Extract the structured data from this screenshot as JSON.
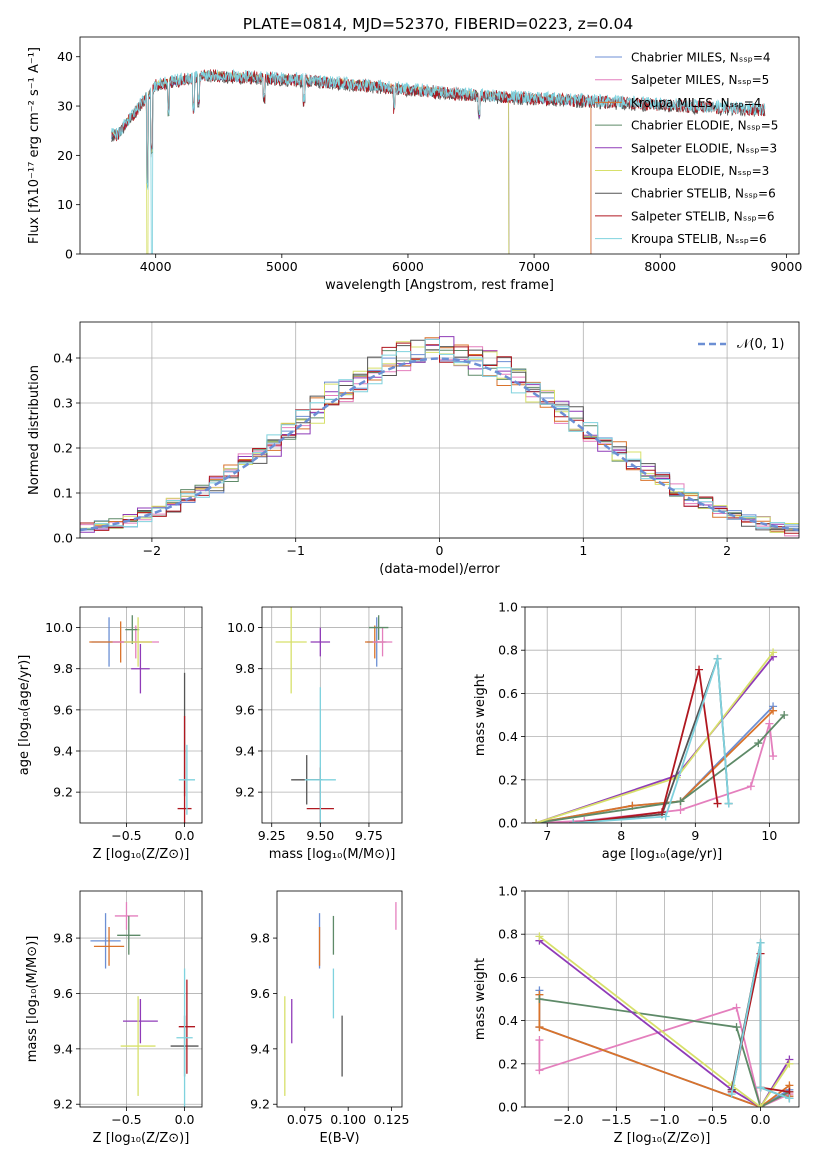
{
  "chart_data": [
    {
      "type": "line",
      "title": "PLATE=0814, MJD=52370, FIBERID=0223, z=0.04",
      "xlabel": "wavelength [Angstrom, rest frame]",
      "ylabel": "Flux [fλ10⁻¹⁷ erg cm⁻² s⁻¹ A⁻¹]",
      "xlim": [
        3400,
        9100
      ],
      "ylim": [
        0,
        44
      ],
      "xticks": [
        4000,
        5000,
        6000,
        7000,
        8000,
        9000
      ],
      "yticks": [
        0,
        10,
        20,
        30,
        40
      ],
      "grid": false,
      "legend_position": "top-right",
      "series": [
        {
          "name": "Chabrier MILES, N_SSP=4",
          "color": "#6c8fd4",
          "x_range": [
            3650,
            7450
          ]
        },
        {
          "name": "Salpeter MILES, N_SSP=5",
          "color": "#e47fbd",
          "x_range": [
            3650,
            7450
          ]
        },
        {
          "name": "Kroupa MILES, N_SSP=4",
          "color": "#d9732b",
          "x_range": [
            3650,
            7450
          ]
        },
        {
          "name": "Chabrier ELODIE, N_SSP=5",
          "color": "#5e8a68",
          "x_range": [
            3650,
            6800
          ]
        },
        {
          "name": "Salpeter ELODIE, N_SSP=3",
          "color": "#8f3bb8",
          "x_range": [
            3650,
            6800
          ]
        },
        {
          "name": "Kroupa ELODIE, N_SSP=3",
          "color": "#d7e06a",
          "x_range": [
            3650,
            6800
          ]
        },
        {
          "name": "Chabrier STELIB, N_SSP=6",
          "color": "#555555",
          "x_range": [
            3650,
            8830
          ]
        },
        {
          "name": "Salpeter STELIB, N_SSP=6",
          "color": "#b01820",
          "x_range": [
            3650,
            8830
          ]
        },
        {
          "name": "Kroupa STELIB, N_SSP=6",
          "color": "#7fd2de",
          "x_range": [
            3650,
            8830
          ]
        }
      ]
    },
    {
      "type": "bar",
      "xlabel": "(data-model)/error",
      "ylabel": "Normed distribution",
      "xlim": [
        -2.5,
        2.5
      ],
      "ylim": [
        0,
        0.48
      ],
      "xticks": [
        -2,
        -1,
        0,
        1,
        2
      ],
      "yticks": [
        0.0,
        0.1,
        0.2,
        0.3,
        0.4
      ],
      "grid": true,
      "legend": "𝒩(0, 1)",
      "legend_position": "top-right",
      "description_curve": "gaussian N(0,1)",
      "bin_width": 0.1
    },
    {
      "type": "scatter",
      "xlabel": "Z [log₁₀(Z/Z⊙)]",
      "ylabel": "age  [log₁₀(age/yr)]",
      "xlim": [
        -0.9,
        0.15
      ],
      "ylim": [
        9.05,
        10.1
      ],
      "xticks": [
        -0.5,
        0.0
      ],
      "yticks": [
        9.2,
        9.4,
        9.6,
        9.8,
        10.0
      ],
      "grid": true,
      "points": [
        {
          "x": -0.65,
          "y": 9.93,
          "xerr": 0.15,
          "yerr": 0.12,
          "color": "#6c8fd4"
        },
        {
          "x": -0.55,
          "y": 9.93,
          "xerr": 0.27,
          "yerr": 0.1,
          "color": "#d9732b"
        },
        {
          "x": -0.42,
          "y": 9.93,
          "xerr": 0.2,
          "yerr": 0.08,
          "color": "#e47fbd"
        },
        {
          "x": -0.45,
          "y": 9.99,
          "xerr": 0.06,
          "yerr": 0.07,
          "color": "#5e8a68"
        },
        {
          "x": -0.38,
          "y": 9.8,
          "xerr": 0.08,
          "yerr": 0.12,
          "color": "#8f3bb8"
        },
        {
          "x": -0.4,
          "y": 9.93,
          "xerr": 0.12,
          "yerr": 0.12,
          "color": "#d7e06a"
        },
        {
          "x": 0.0,
          "y": 9.48,
          "xerr": 0.0,
          "yerr": 0.3,
          "color": "#555555"
        },
        {
          "x": 0.0,
          "y": 9.12,
          "xerr": 0.06,
          "yerr": 0.45,
          "color": "#b01820"
        },
        {
          "x": 0.02,
          "y": 9.26,
          "xerr": 0.07,
          "yerr": 0.17,
          "color": "#7fd2de"
        }
      ]
    },
    {
      "type": "scatter",
      "xlabel": "mass [log₁₀(M/M⊙)]",
      "xlim": [
        9.2,
        9.92
      ],
      "ylim": [
        9.05,
        10.1
      ],
      "xticks": [
        9.25,
        9.5,
        9.75
      ],
      "yticks": [
        9.2,
        9.4,
        9.6,
        9.8,
        10.0
      ],
      "grid": true,
      "points": [
        {
          "x": 9.79,
          "y": 9.93,
          "xerr": 0.05,
          "yerr": 0.12,
          "color": "#6c8fd4"
        },
        {
          "x": 9.78,
          "y": 9.93,
          "xerr": 0.05,
          "yerr": 0.08,
          "color": "#d9732b"
        },
        {
          "x": 9.82,
          "y": 9.93,
          "xerr": 0.05,
          "yerr": 0.07,
          "color": "#e47fbd"
        },
        {
          "x": 9.8,
          "y": 10.0,
          "xerr": 0.05,
          "yerr": 0.06,
          "color": "#5e8a68"
        },
        {
          "x": 9.5,
          "y": 9.93,
          "xerr": 0.05,
          "yerr": 0.07,
          "color": "#8f3bb8"
        },
        {
          "x": 9.35,
          "y": 9.93,
          "xerr": 0.08,
          "yerr": 0.25,
          "color": "#d7e06a"
        },
        {
          "x": 9.43,
          "y": 9.26,
          "xerr": 0.08,
          "yerr": 0.12,
          "color": "#555555"
        },
        {
          "x": 9.5,
          "y": 9.12,
          "xerr": 0.07,
          "yerr": 0.2,
          "color": "#b01820"
        },
        {
          "x": 9.5,
          "y": 9.26,
          "xerr": 0.08,
          "yerr": 0.45,
          "color": "#7fd2de"
        }
      ]
    },
    {
      "type": "line",
      "xlabel": "age  [log₁₀(age/yr)]",
      "ylabel": "mass weight",
      "xlim": [
        6.7,
        10.4
      ],
      "ylim": [
        0,
        1.0
      ],
      "xticks": [
        7,
        8,
        9,
        10
      ],
      "yticks": [
        0.0,
        0.2,
        0.4,
        0.6,
        0.8,
        1.0
      ],
      "grid": true,
      "series": [
        {
          "name": "Chabrier MILES",
          "color": "#6c8fd4",
          "x": [
            6.85,
            8.15,
            8.8,
            10.05
          ],
          "y": [
            0.0,
            0.08,
            0.1,
            0.54
          ]
        },
        {
          "name": "Salpeter MILES",
          "color": "#e47fbd",
          "x": [
            6.85,
            7.5,
            8.8,
            9.75,
            10.0,
            10.05
          ],
          "y": [
            0.0,
            0.01,
            0.06,
            0.17,
            0.46,
            0.31
          ]
        },
        {
          "name": "Kroupa MILES",
          "color": "#d9732b",
          "x": [
            6.85,
            8.15,
            8.8,
            10.05
          ],
          "y": [
            0.0,
            0.08,
            0.1,
            0.52
          ]
        },
        {
          "name": "Chabrier ELODIE",
          "color": "#5e8a68",
          "x": [
            6.85,
            8.8,
            9.85,
            10.2
          ],
          "y": [
            0.0,
            0.1,
            0.37,
            0.5
          ]
        },
        {
          "name": "Salpeter ELODIE",
          "color": "#8f3bb8",
          "x": [
            6.85,
            8.75,
            10.05
          ],
          "y": [
            0.0,
            0.22,
            0.77
          ]
        },
        {
          "name": "Kroupa ELODIE",
          "color": "#d7e06a",
          "x": [
            6.85,
            8.75,
            10.05
          ],
          "y": [
            0.0,
            0.21,
            0.79
          ]
        },
        {
          "name": "Chabrier STELIB",
          "color": "#555555",
          "x": [
            7.35,
            8.55,
            9.3,
            9.45
          ],
          "y": [
            0.0,
            0.04,
            0.76,
            0.09
          ]
        },
        {
          "name": "Salpeter STELIB",
          "color": "#b01820",
          "x": [
            7.35,
            8.55,
            9.05,
            9.3
          ],
          "y": [
            0.0,
            0.05,
            0.71,
            0.09
          ]
        },
        {
          "name": "Kroupa STELIB",
          "color": "#7fd2de",
          "x": [
            7.35,
            8.6,
            9.3,
            9.45
          ],
          "y": [
            0.0,
            0.03,
            0.76,
            0.09
          ]
        }
      ]
    },
    {
      "type": "scatter",
      "xlabel": "Z [log₁₀(Z/Z⊙)]",
      "ylabel": "mass [log₁₀(M/M⊙)]",
      "xlim": [
        -0.9,
        0.15
      ],
      "ylim": [
        9.19,
        9.97
      ],
      "xticks": [
        -0.5,
        0.0
      ],
      "yticks": [
        9.2,
        9.4,
        9.6,
        9.8
      ],
      "grid": true,
      "points": [
        {
          "x": -0.68,
          "y": 9.79,
          "xerr": 0.13,
          "yerr": 0.1,
          "color": "#6c8fd4"
        },
        {
          "x": -0.65,
          "y": 9.77,
          "xerr": 0.13,
          "yerr": 0.07,
          "color": "#d9732b"
        },
        {
          "x": -0.5,
          "y": 9.88,
          "xerr": 0.1,
          "yerr": 0.05,
          "color": "#e47fbd"
        },
        {
          "x": -0.48,
          "y": 9.81,
          "xerr": 0.1,
          "yerr": 0.07,
          "color": "#5e8a68"
        },
        {
          "x": -0.38,
          "y": 9.5,
          "xerr": 0.15,
          "yerr": 0.08,
          "color": "#8f3bb8"
        },
        {
          "x": -0.4,
          "y": 9.41,
          "xerr": 0.15,
          "yerr": 0.18,
          "color": "#d7e06a"
        },
        {
          "x": 0.0,
          "y": 9.41,
          "xerr": 0.12,
          "yerr": 0.11,
          "color": "#555555"
        },
        {
          "x": 0.02,
          "y": 9.48,
          "xerr": 0.07,
          "yerr": 0.17,
          "color": "#b01820"
        },
        {
          "x": 0.0,
          "y": 9.44,
          "xerr": 0.07,
          "yerr": 0.25,
          "color": "#7fd2de"
        }
      ]
    },
    {
      "type": "scatter",
      "xlabel": "E(B-V)",
      "xlim": [
        0.059,
        0.131
      ],
      "ylim": [
        9.19,
        9.97
      ],
      "xticks": [
        0.075,
        0.1,
        0.125
      ],
      "yticks": [
        9.2,
        9.4,
        9.6,
        9.8
      ],
      "grid": false,
      "points": [
        {
          "x": 0.0835,
          "y": 9.79,
          "yerr": 0.1,
          "color": "#6c8fd4"
        },
        {
          "x": 0.0835,
          "y": 9.77,
          "yerr": 0.07,
          "color": "#d9732b"
        },
        {
          "x": 0.1275,
          "y": 9.88,
          "yerr": 0.05,
          "color": "#e47fbd"
        },
        {
          "x": 0.0915,
          "y": 9.81,
          "yerr": 0.07,
          "color": "#5e8a68"
        },
        {
          "x": 0.0675,
          "y": 9.5,
          "yerr": 0.08,
          "color": "#8f3bb8"
        },
        {
          "x": 0.0635,
          "y": 9.41,
          "yerr": 0.18,
          "color": "#d7e06a"
        },
        {
          "x": 0.0965,
          "y": 9.41,
          "yerr": 0.11,
          "color": "#555555"
        },
        {
          "x": 0.0915,
          "y": 9.6,
          "yerr": 0.09,
          "color": "#7fd2de"
        }
      ]
    },
    {
      "type": "line",
      "xlabel": "Z [log₁₀(Z/Z⊙)]",
      "ylabel": "mass weight",
      "xlim": [
        -2.45,
        0.4
      ],
      "ylim": [
        0,
        1.0
      ],
      "xticks": [
        -2.0,
        -1.5,
        -1.0,
        -0.5,
        0.0
      ],
      "yticks": [
        0.0,
        0.2,
        0.4,
        0.6,
        0.8,
        1.0
      ],
      "grid": true,
      "series": [
        {
          "name": "Chabrier MILES",
          "color": "#6c8fd4",
          "x": [
            -2.3,
            -2.3,
            0.0,
            0.3,
            0.3
          ],
          "y": [
            0.54,
            0.37,
            0.0,
            0.08,
            0.05
          ]
        },
        {
          "name": "Salpeter MILES",
          "color": "#e47fbd",
          "x": [
            -2.3,
            -2.3,
            -0.25,
            0.0,
            0.3
          ],
          "y": [
            0.31,
            0.17,
            0.46,
            0.0,
            0.06
          ]
        },
        {
          "name": "Kroupa MILES",
          "color": "#d9732b",
          "x": [
            -2.3,
            -2.3,
            0.0,
            0.3,
            0.3
          ],
          "y": [
            0.52,
            0.37,
            0.0,
            0.1,
            0.05
          ]
        },
        {
          "name": "Chabrier ELODIE",
          "color": "#5e8a68",
          "x": [
            -2.3,
            -0.25,
            0.0,
            0.3
          ],
          "y": [
            0.5,
            0.37,
            0.0,
            0.07
          ]
        },
        {
          "name": "Salpeter ELODIE",
          "color": "#8f3bb8",
          "x": [
            -2.3,
            -0.3,
            0.0,
            0.3
          ],
          "y": [
            0.77,
            0.08,
            0.0,
            0.22
          ]
        },
        {
          "name": "Kroupa ELODIE",
          "color": "#d7e06a",
          "x": [
            -2.3,
            -0.3,
            0.0,
            0.3
          ],
          "y": [
            0.79,
            0.1,
            0.0,
            0.2
          ]
        },
        {
          "name": "Chabrier STELIB",
          "color": "#555555",
          "x": [
            -0.3,
            0.0,
            0.0,
            0.3
          ],
          "y": [
            0.08,
            0.76,
            0.09,
            0.04
          ]
        },
        {
          "name": "Salpeter STELIB",
          "color": "#b01820",
          "x": [
            -0.3,
            0.0,
            0.0,
            0.3
          ],
          "y": [
            0.07,
            0.71,
            0.09,
            0.07
          ]
        },
        {
          "name": "Kroupa STELIB",
          "color": "#7fd2de",
          "x": [
            -0.3,
            0.0,
            0.0,
            0.3
          ],
          "y": [
            0.06,
            0.76,
            0.09,
            0.04
          ]
        }
      ]
    }
  ]
}
